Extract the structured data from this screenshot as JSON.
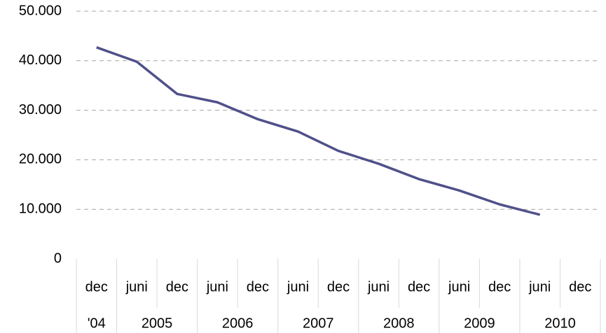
{
  "chart_data": {
    "type": "line",
    "categories": [
      "dec",
      "juni",
      "dec",
      "juni",
      "dec",
      "juni",
      "dec",
      "juni",
      "dec",
      "juni",
      "dec",
      "juni",
      "dec"
    ],
    "year_labels": [
      "'04",
      "2005",
      "2006",
      "2007",
      "2008",
      "2009",
      "2010"
    ],
    "series": [
      {
        "color": "#50508a",
        "values": [
          42700,
          39800,
          33300,
          31600,
          28200,
          25700,
          21800,
          19200,
          16100,
          13800,
          11000,
          8900,
          null
        ]
      }
    ],
    "ylim": [
      0,
      50000
    ],
    "yticks": [
      0,
      {
        "value": 10000,
        "label": "10.000"
      },
      {
        "value": 20000,
        "label": "20.000"
      },
      {
        "value": 30000,
        "label": "30.000"
      },
      {
        "value": 40000,
        "label": "40.000"
      },
      {
        "value": 50000,
        "label": "50.000"
      }
    ],
    "grid": true
  }
}
